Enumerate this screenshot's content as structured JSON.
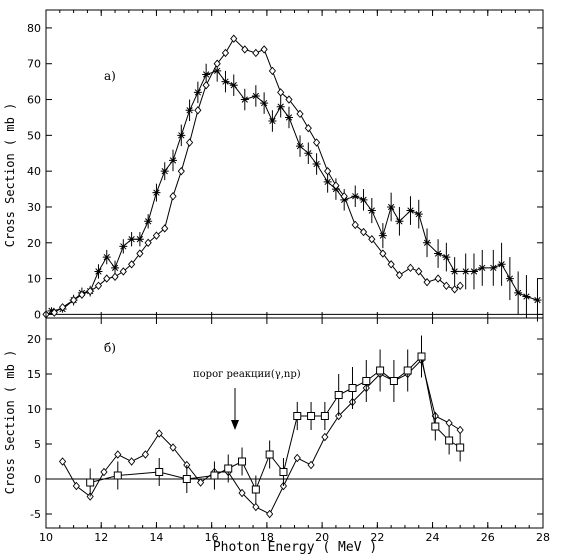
{
  "chart_data": {
    "x_axis": {
      "label": "Photon Energy ( MeV )",
      "min": 10,
      "max": 28,
      "ticks": [
        10,
        12,
        14,
        16,
        18,
        20,
        22,
        24,
        26,
        28
      ]
    },
    "panels": [
      {
        "panel_label": "a)",
        "type": "line",
        "ylabel": "Cross Section ( mb )",
        "ylim": [
          -1,
          85
        ],
        "yticks": [
          0,
          10,
          20,
          30,
          40,
          50,
          60,
          70,
          80
        ],
        "series": [
          {
            "marker": "star",
            "points": [
              [
                10.2,
                1
              ],
              [
                10.6,
                1.5
              ],
              [
                11,
                4
              ],
              [
                11.3,
                6
              ],
              [
                11.6,
                6.5
              ],
              [
                11.9,
                12
              ],
              [
                12.2,
                16
              ],
              [
                12.5,
                13
              ],
              [
                12.8,
                19
              ],
              [
                13.1,
                21
              ],
              [
                13.4,
                21
              ],
              [
                13.7,
                26
              ],
              [
                14.0,
                34
              ],
              [
                14.3,
                40
              ],
              [
                14.6,
                43
              ],
              [
                14.9,
                50
              ],
              [
                15.2,
                57
              ],
              [
                15.5,
                62
              ],
              [
                15.8,
                67
              ],
              [
                16.2,
                68
              ],
              [
                16.5,
                65
              ],
              [
                16.8,
                64
              ],
              [
                17.2,
                60
              ],
              [
                17.6,
                61
              ],
              [
                17.9,
                59
              ],
              [
                18.2,
                54
              ],
              [
                18.5,
                58
              ],
              [
                18.8,
                55
              ],
              [
                19.2,
                47
              ],
              [
                19.5,
                45
              ],
              [
                19.8,
                42
              ],
              [
                20.2,
                37
              ],
              [
                20.5,
                35
              ],
              [
                20.8,
                32
              ],
              [
                21.2,
                33
              ],
              [
                21.5,
                32
              ],
              [
                21.8,
                29
              ],
              [
                22.2,
                22
              ],
              [
                22.5,
                30
              ],
              [
                22.8,
                26
              ],
              [
                23.2,
                29
              ],
              [
                23.5,
                28
              ],
              [
                23.8,
                20
              ],
              [
                24.2,
                17
              ],
              [
                24.5,
                16
              ],
              [
                24.8,
                12
              ],
              [
                25.2,
                12
              ],
              [
                25.5,
                12
              ],
              [
                25.8,
                13
              ],
              [
                26.2,
                13
              ],
              [
                26.5,
                14
              ],
              [
                26.8,
                10
              ],
              [
                27.1,
                6
              ],
              [
                27.4,
                5
              ],
              [
                27.8,
                4
              ]
            ],
            "errors": [
              1,
              1,
              1.5,
              1.5,
              1.5,
              2,
              2,
              2,
              2,
              2,
              2,
              2,
              2.5,
              2.5,
              3,
              3,
              3,
              3,
              3,
              3,
              3,
              3,
              3,
              3,
              3,
              3,
              3,
              3,
              3,
              3,
              3,
              3,
              3,
              3,
              3,
              3,
              3.5,
              3.5,
              4,
              4,
              4,
              4,
              4,
              4,
              4,
              4,
              5,
              5,
              5,
              5,
              6,
              6,
              6,
              6,
              6
            ]
          },
          {
            "marker": "diamond",
            "points": [
              [
                10.0,
                0
              ],
              [
                10.3,
                0.5
              ],
              [
                10.6,
                2
              ],
              [
                11,
                4
              ],
              [
                11.3,
                5.5
              ],
              [
                11.6,
                6.5
              ],
              [
                11.9,
                8
              ],
              [
                12.2,
                10
              ],
              [
                12.5,
                10.5
              ],
              [
                12.8,
                12
              ],
              [
                13.1,
                14
              ],
              [
                13.4,
                17
              ],
              [
                13.7,
                20
              ],
              [
                14.0,
                22
              ],
              [
                14.3,
                24
              ],
              [
                14.6,
                33
              ],
              [
                14.9,
                40
              ],
              [
                15.2,
                48
              ],
              [
                15.5,
                57
              ],
              [
                15.8,
                64
              ],
              [
                16.2,
                70
              ],
              [
                16.5,
                73
              ],
              [
                16.8,
                77
              ],
              [
                17.2,
                74
              ],
              [
                17.6,
                73
              ],
              [
                17.9,
                74
              ],
              [
                18.2,
                68
              ],
              [
                18.5,
                62
              ],
              [
                18.8,
                60
              ],
              [
                19.2,
                56
              ],
              [
                19.5,
                52
              ],
              [
                19.8,
                48
              ],
              [
                20.2,
                40
              ],
              [
                20.5,
                36
              ],
              [
                20.8,
                33
              ],
              [
                21.2,
                25
              ],
              [
                21.5,
                23
              ],
              [
                21.8,
                21
              ],
              [
                22.2,
                17
              ],
              [
                22.5,
                14
              ],
              [
                22.8,
                11
              ],
              [
                23.2,
                13
              ],
              [
                23.5,
                12
              ],
              [
                23.8,
                9
              ],
              [
                24.2,
                10
              ],
              [
                24.5,
                8
              ],
              [
                24.8,
                7
              ],
              [
                25.0,
                8
              ]
            ]
          }
        ]
      },
      {
        "panel_label": "б)",
        "type": "line",
        "ylabel": "Cross Section ( mb )",
        "ylim": [
          -7,
          23
        ],
        "yticks": [
          -5,
          0,
          5,
          10,
          15,
          20
        ],
        "annotation": "порог реакции(γ,np)",
        "annotation_arrow_x": 16.8,
        "series": [
          {
            "marker": "diamond",
            "points": [
              [
                10.6,
                2.5
              ],
              [
                11.1,
                -1
              ],
              [
                11.6,
                -2.5
              ],
              [
                12.1,
                1
              ],
              [
                12.6,
                3.5
              ],
              [
                13.1,
                2.5
              ],
              [
                13.6,
                3.5
              ],
              [
                14.1,
                6.5
              ],
              [
                14.6,
                4.5
              ],
              [
                15.1,
                2
              ],
              [
                15.6,
                -0.5
              ],
              [
                16.1,
                1
              ],
              [
                16.6,
                1
              ],
              [
                17.1,
                -2
              ],
              [
                17.6,
                -4
              ],
              [
                18.1,
                -5
              ],
              [
                18.6,
                -1
              ],
              [
                19.1,
                3
              ],
              [
                19.6,
                2
              ],
              [
                20.1,
                6
              ],
              [
                20.6,
                9
              ],
              [
                21.1,
                11
              ],
              [
                21.6,
                13
              ],
              [
                22.1,
                15
              ],
              [
                22.6,
                14
              ],
              [
                23.1,
                15
              ],
              [
                23.6,
                17
              ],
              [
                24.1,
                9
              ],
              [
                24.6,
                8
              ],
              [
                25.0,
                7
              ]
            ]
          },
          {
            "marker": "square",
            "points": [
              [
                11.6,
                -0.5
              ],
              [
                12.6,
                0.5
              ],
              [
                14.1,
                1
              ],
              [
                15.1,
                0
              ],
              [
                16.1,
                0.5
              ],
              [
                16.6,
                1.5
              ],
              [
                17.1,
                2.5
              ],
              [
                17.6,
                -1.5
              ],
              [
                18.1,
                3.5
              ],
              [
                18.6,
                1
              ],
              [
                19.1,
                9
              ],
              [
                19.6,
                9
              ],
              [
                20.1,
                9
              ],
              [
                20.6,
                12
              ],
              [
                21.1,
                13
              ],
              [
                21.6,
                14
              ],
              [
                22.1,
                15.5
              ],
              [
                22.6,
                14
              ],
              [
                23.1,
                15.5
              ],
              [
                23.6,
                17.5
              ],
              [
                24.1,
                7.5
              ],
              [
                24.6,
                5.5
              ],
              [
                25.0,
                4.5
              ]
            ],
            "errors": [
              2,
              2,
              2,
              2,
              2,
              2,
              2,
              2,
              2,
              2,
              2,
              2,
              2,
              3,
              3,
              3,
              3,
              3,
              3,
              3,
              2,
              2,
              2
            ]
          }
        ]
      }
    ]
  }
}
